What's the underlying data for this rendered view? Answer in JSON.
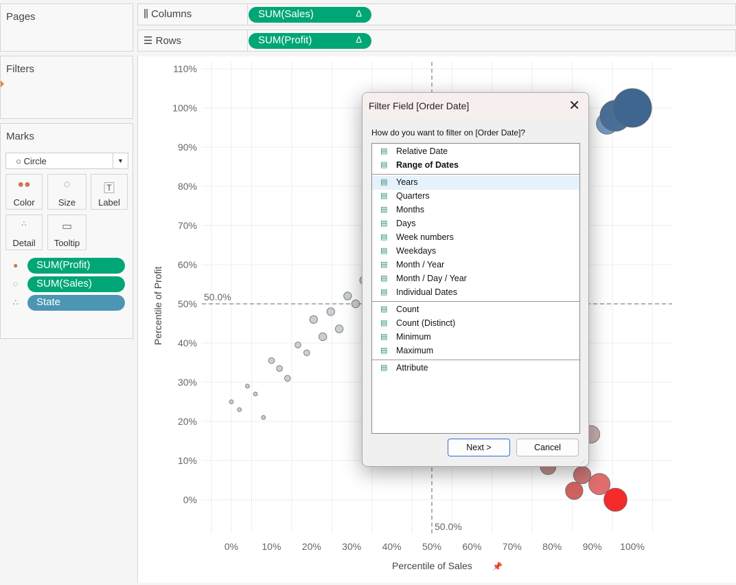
{
  "panels": {
    "pages": "Pages",
    "filters": "Filters",
    "marks": "Marks"
  },
  "shelves": {
    "columns_label": "Columns",
    "columns_pill": "SUM(Sales)",
    "rows_label": "Rows",
    "rows_pill": "SUM(Profit)",
    "delta": "Δ"
  },
  "marks": {
    "type": "Circle",
    "buttons": [
      "Color",
      "Size",
      "Label",
      "Detail",
      "Tooltip"
    ],
    "pills": [
      {
        "label": "SUM(Profit)",
        "color": "#00a676"
      },
      {
        "label": "SUM(Sales)",
        "color": "#00a676"
      },
      {
        "label": "State",
        "color": "#4a96b3"
      }
    ]
  },
  "chart_data": {
    "type": "scatter",
    "xlabel": "Percentile of Sales",
    "ylabel": "Percentile of Profit",
    "xlim": [
      -7,
      110
    ],
    "ylim": [
      -9,
      112
    ],
    "xticks": [
      "0%",
      "10%",
      "20%",
      "30%",
      "40%",
      "50%",
      "60%",
      "70%",
      "80%",
      "90%",
      "100%"
    ],
    "yticks": [
      "0%",
      "10%",
      "20%",
      "30%",
      "40%",
      "50%",
      "60%",
      "70%",
      "80%",
      "90%",
      "100%",
      "110%"
    ],
    "reference_lines": {
      "x": 50,
      "y": 50,
      "x_label": "50.0%",
      "y_label": "50.0%"
    },
    "points": [
      {
        "x": 0,
        "y": 25,
        "size": 1,
        "color": "#c8d0d6"
      },
      {
        "x": 2,
        "y": 23,
        "size": 1,
        "color": "#c8d0d6"
      },
      {
        "x": 4,
        "y": 29,
        "size": 1,
        "color": "#c8d0d6"
      },
      {
        "x": 6,
        "y": 27,
        "size": 1,
        "color": "#c8d0d6"
      },
      {
        "x": 8,
        "y": 21,
        "size": 1,
        "color": "#c8d0d6"
      },
      {
        "x": 10,
        "y": 35.5,
        "size": 2,
        "color": "#c8d0d6"
      },
      {
        "x": 12,
        "y": 33.5,
        "size": 2,
        "color": "#c8d0d6"
      },
      {
        "x": 14,
        "y": 31,
        "size": 2,
        "color": "#c8d0d6"
      },
      {
        "x": 16.6,
        "y": 39.5,
        "size": 2,
        "color": "#c8d0d6"
      },
      {
        "x": 18.8,
        "y": 37.5,
        "size": 2,
        "color": "#c8d0d6"
      },
      {
        "x": 20.5,
        "y": 46,
        "size": 3,
        "color": "#c8d0d6"
      },
      {
        "x": 22.8,
        "y": 41.6,
        "size": 3,
        "color": "#c8d0d6"
      },
      {
        "x": 24.8,
        "y": 48,
        "size": 3,
        "color": "#c8d0d6"
      },
      {
        "x": 26.9,
        "y": 43.6,
        "size": 3,
        "color": "#c8d0d6"
      },
      {
        "x": 29,
        "y": 52,
        "size": 3,
        "color": "#c8d0d6"
      },
      {
        "x": 31,
        "y": 50,
        "size": 3,
        "color": "#c8d0d6"
      },
      {
        "x": 33,
        "y": 56,
        "size": 3,
        "color": "#c8d0d6"
      },
      {
        "x": 93.7,
        "y": 96,
        "size": 10,
        "color": "#6f9ac4"
      },
      {
        "x": 95.8,
        "y": 98,
        "size": 15,
        "color": "#4a6f96"
      },
      {
        "x": 100,
        "y": 100,
        "size": 19,
        "color": "#3e6690"
      },
      {
        "x": 89.7,
        "y": 16.7,
        "size": 8,
        "color": "#c8aeae"
      },
      {
        "x": 79,
        "y": 8.4,
        "size": 7,
        "color": "#c48f8f"
      },
      {
        "x": 87.5,
        "y": 6.3,
        "size": 8,
        "color": "#c97474"
      },
      {
        "x": 85.5,
        "y": 2.3,
        "size": 8,
        "color": "#d36060"
      },
      {
        "x": 91.8,
        "y": 4,
        "size": 10,
        "color": "#e06e6e"
      },
      {
        "x": 95.8,
        "y": 0,
        "size": 11,
        "color": "#f52a2a"
      }
    ]
  },
  "dialog": {
    "title": "Filter Field [Order Date]",
    "question": "How do you want to filter on [Order Date]?",
    "groups": [
      [
        "Relative Date",
        "Range of Dates"
      ],
      [
        "Years",
        "Quarters",
        "Months",
        "Days",
        "Week numbers",
        "Weekdays",
        "Month / Year",
        "Month / Day / Year",
        "Individual Dates"
      ],
      [
        "Count",
        "Count (Distinct)",
        "Minimum",
        "Maximum"
      ],
      [
        "Attribute"
      ]
    ],
    "selected": "Years",
    "bold": "Range of Dates",
    "next": "Next >",
    "cancel": "Cancel",
    "close": "✕"
  }
}
